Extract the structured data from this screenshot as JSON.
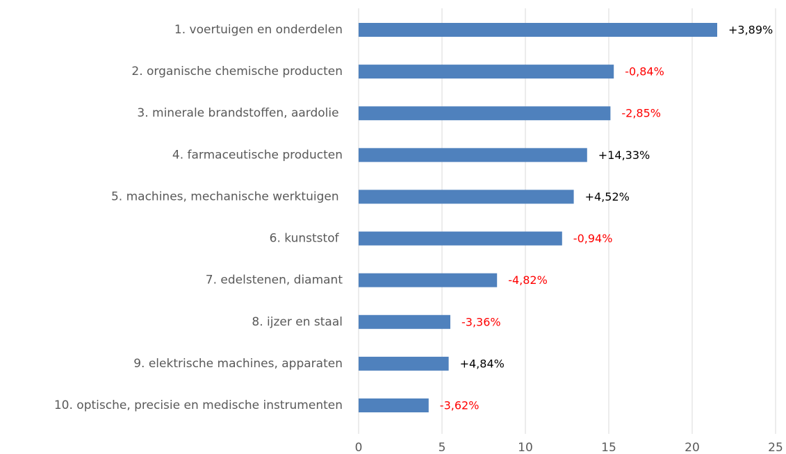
{
  "chart_data": {
    "type": "barh",
    "categories": [
      "1. voertuigen en onderdelen",
      "2. organische chemische producten",
      "3. minerale brandstoffen, aardolie ",
      "4. farmaceutische producten",
      "5. machines, mechanische werktuigen ",
      "6. kunststof ",
      "7. edelstenen, diamant",
      "8. ijzer en staal",
      "9. elektrische machines, apparaten",
      "10. optische, precisie en medische instrumenten"
    ],
    "values": [
      21.5,
      15.3,
      15.1,
      13.7,
      12.9,
      12.2,
      8.3,
      5.5,
      5.4,
      4.2
    ],
    "annotations": [
      "+3,89%",
      "-0,84%",
      "-2,85%",
      "+14,33%",
      "+4,52%",
      "-0,94%",
      "-4,82%",
      "-3,36%",
      "+4,84%",
      "-3,62%"
    ],
    "annotation_colors": [
      "#000000",
      "#ff0000",
      "#ff0000",
      "#000000",
      "#000000",
      "#ff0000",
      "#ff0000",
      "#ff0000",
      "#000000",
      "#ff0000"
    ],
    "color": "#4f81bd",
    "xlim": [
      0,
      25
    ],
    "xticks": [
      0,
      5,
      10,
      15,
      20,
      25
    ],
    "grid": true
  }
}
